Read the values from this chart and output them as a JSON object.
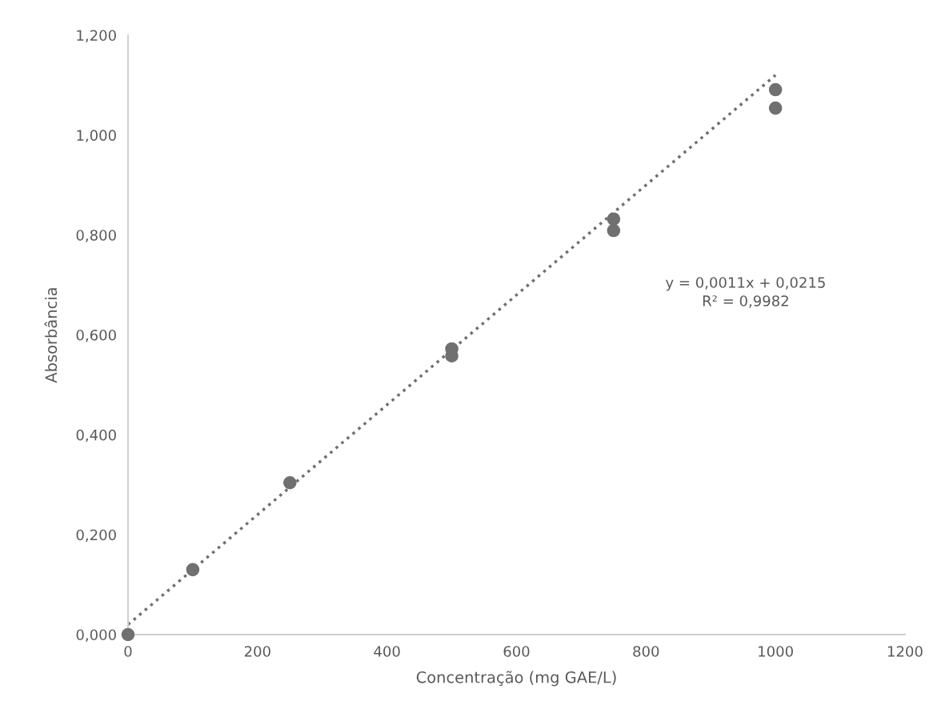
{
  "chart_data": {
    "type": "scatter",
    "xlabel": "Concentração (mg GAE/L)",
    "ylabel": "Absorbância",
    "xlim": [
      0,
      1200
    ],
    "xticks": [
      0,
      200,
      400,
      600,
      800,
      1000,
      1200
    ],
    "ylim": [
      0,
      1.2
    ],
    "yticks": [
      {
        "value": 0,
        "label": "0,000"
      },
      {
        "value": 0.2,
        "label": "0,200"
      },
      {
        "value": 0.4,
        "label": "0,400"
      },
      {
        "value": 0.6,
        "label": "0,600"
      },
      {
        "value": 0.8,
        "label": "0,800"
      },
      {
        "value": 1.0,
        "label": "1,000"
      },
      {
        "value": 1.2,
        "label": "1,200"
      }
    ],
    "grid": false,
    "legend": false,
    "series": [
      {
        "color": "#707070",
        "marker": "circle",
        "x": [
          0,
          100,
          250,
          500,
          500,
          750,
          750,
          1000,
          1000
        ],
        "values": [
          0,
          0.13,
          0.304,
          0.572,
          0.558,
          0.832,
          0.809,
          1.091,
          1.054
        ]
      },
      {
        "type": "line",
        "color": "#707070",
        "marker": "none",
        "line_style": "dotted",
        "x": [
          0,
          1000
        ],
        "values": [
          0.02,
          1.12
        ]
      }
    ],
    "annotations": [
      "y = 0,0011x + 0,0215\nR² = 0,9982"
    ]
  }
}
